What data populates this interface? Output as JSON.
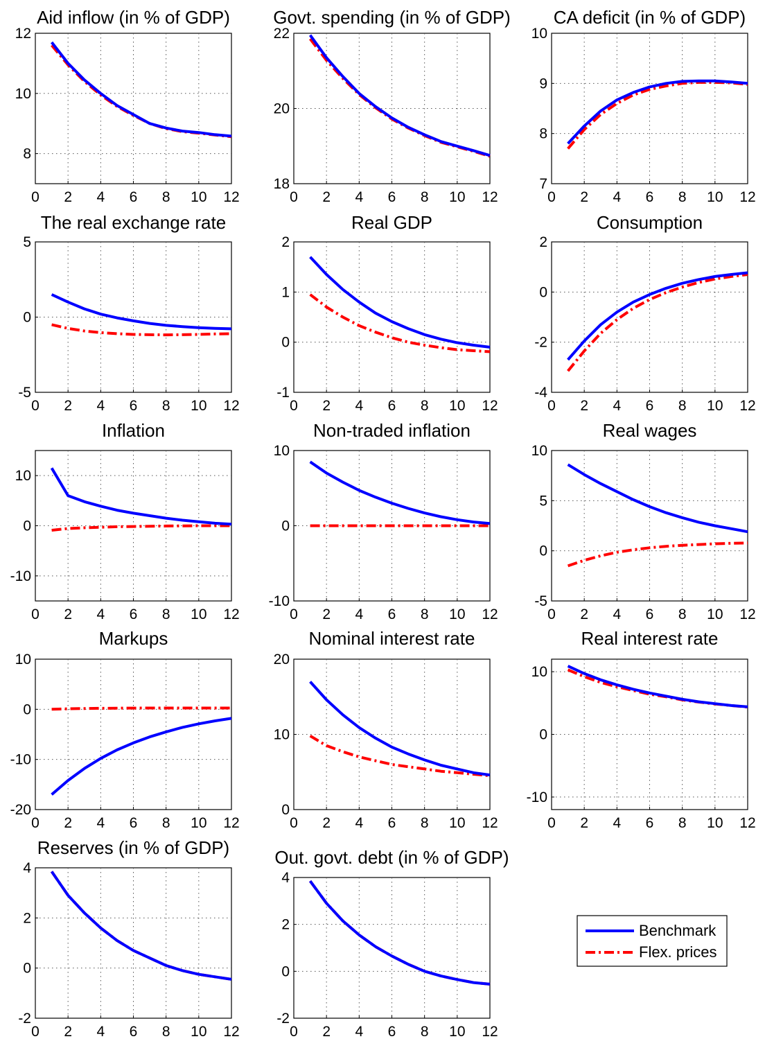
{
  "chart_data": [
    {
      "type": "line",
      "title": "Aid inflow (in % of GDP)",
      "xlim": [
        0,
        12
      ],
      "ylim": [
        7,
        12
      ],
      "xticks": [
        0,
        2,
        4,
        6,
        8,
        10,
        12
      ],
      "yticks": [
        8,
        10,
        12
      ],
      "grid": true,
      "series": [
        {
          "name": "Benchmark",
          "x": [
            1,
            2,
            3,
            4,
            5,
            6,
            7,
            8,
            9,
            10,
            11,
            12
          ],
          "y": [
            11.7,
            11.0,
            10.45,
            10.0,
            9.6,
            9.3,
            9.0,
            8.85,
            8.75,
            8.7,
            8.63,
            8.58
          ]
        },
        {
          "name": "Flex. prices",
          "x": [
            1,
            2,
            3,
            4,
            5,
            6,
            7,
            8,
            9,
            10,
            11,
            12
          ],
          "y": [
            11.6,
            10.95,
            10.4,
            9.95,
            9.57,
            9.27,
            9.0,
            8.83,
            8.73,
            8.68,
            8.62,
            8.56
          ]
        }
      ]
    },
    {
      "type": "line",
      "title": "Govt. spending (in % of GDP)",
      "xlim": [
        0,
        12
      ],
      "ylim": [
        18,
        22
      ],
      "xticks": [
        0,
        2,
        4,
        6,
        8,
        10,
        12
      ],
      "yticks": [
        18,
        20,
        22
      ],
      "grid": true,
      "series": [
        {
          "name": "Benchmark",
          "x": [
            1,
            2,
            3,
            4,
            5,
            6,
            7,
            8,
            9,
            10,
            11,
            12
          ],
          "y": [
            21.95,
            21.35,
            20.85,
            20.4,
            20.05,
            19.75,
            19.5,
            19.3,
            19.12,
            19.0,
            18.88,
            18.75
          ]
        },
        {
          "name": "Flex. prices",
          "x": [
            1,
            2,
            3,
            4,
            5,
            6,
            7,
            8,
            9,
            10,
            11,
            12
          ],
          "y": [
            21.85,
            21.28,
            20.8,
            20.37,
            20.02,
            19.72,
            19.48,
            19.28,
            19.1,
            18.98,
            18.86,
            18.73
          ]
        }
      ]
    },
    {
      "type": "line",
      "title": "CA deficit (in % of GDP)",
      "xlim": [
        0,
        12
      ],
      "ylim": [
        7,
        10
      ],
      "xticks": [
        0,
        2,
        4,
        6,
        8,
        10,
        12
      ],
      "yticks": [
        7,
        8,
        9,
        10
      ],
      "grid": true,
      "series": [
        {
          "name": "Benchmark",
          "x": [
            1,
            2,
            3,
            4,
            5,
            6,
            7,
            8,
            9,
            10,
            11,
            12
          ],
          "y": [
            7.8,
            8.15,
            8.45,
            8.67,
            8.82,
            8.93,
            9.0,
            9.04,
            9.05,
            9.05,
            9.03,
            9.0
          ]
        },
        {
          "name": "Flex. prices",
          "x": [
            1,
            2,
            3,
            4,
            5,
            6,
            7,
            8,
            9,
            10,
            11,
            12
          ],
          "y": [
            7.7,
            8.08,
            8.38,
            8.6,
            8.77,
            8.88,
            8.95,
            9.0,
            9.02,
            9.02,
            9.01,
            8.98
          ]
        }
      ]
    },
    {
      "type": "line",
      "title": "The real exchange rate",
      "xlim": [
        0,
        12
      ],
      "ylim": [
        -5,
        5
      ],
      "xticks": [
        0,
        2,
        4,
        6,
        8,
        10,
        12
      ],
      "yticks": [
        -5,
        0,
        5
      ],
      "grid": true,
      "series": [
        {
          "name": "Benchmark",
          "x": [
            1,
            2,
            3,
            4,
            5,
            6,
            7,
            8,
            9,
            10,
            11,
            12
          ],
          "y": [
            1.5,
            1.0,
            0.55,
            0.2,
            -0.05,
            -0.25,
            -0.42,
            -0.55,
            -0.63,
            -0.7,
            -0.75,
            -0.78
          ]
        },
        {
          "name": "Flex. prices",
          "x": [
            1,
            2,
            3,
            4,
            5,
            6,
            7,
            8,
            9,
            10,
            11,
            12
          ],
          "y": [
            -0.5,
            -0.75,
            -0.92,
            -1.03,
            -1.1,
            -1.15,
            -1.17,
            -1.18,
            -1.17,
            -1.15,
            -1.12,
            -1.1
          ]
        }
      ]
    },
    {
      "type": "line",
      "title": "Real GDP",
      "xlim": [
        0,
        12
      ],
      "ylim": [
        -1,
        2
      ],
      "xticks": [
        0,
        2,
        4,
        6,
        8,
        10,
        12
      ],
      "yticks": [
        -1,
        0,
        1,
        2
      ],
      "grid": true,
      "series": [
        {
          "name": "Benchmark",
          "x": [
            1,
            2,
            3,
            4,
            5,
            6,
            7,
            8,
            9,
            10,
            11,
            12
          ],
          "y": [
            1.7,
            1.35,
            1.05,
            0.8,
            0.58,
            0.41,
            0.27,
            0.15,
            0.06,
            -0.01,
            -0.06,
            -0.1
          ]
        },
        {
          "name": "Flex. prices",
          "x": [
            1,
            2,
            3,
            4,
            5,
            6,
            7,
            8,
            9,
            10,
            11,
            12
          ],
          "y": [
            0.95,
            0.7,
            0.5,
            0.33,
            0.2,
            0.09,
            0.0,
            -0.06,
            -0.11,
            -0.15,
            -0.17,
            -0.19
          ]
        }
      ]
    },
    {
      "type": "line",
      "title": "Consumption",
      "xlim": [
        0,
        12
      ],
      "ylim": [
        -4,
        2
      ],
      "xticks": [
        0,
        2,
        4,
        6,
        8,
        10,
        12
      ],
      "yticks": [
        -4,
        -2,
        0,
        2
      ],
      "grid": true,
      "series": [
        {
          "name": "Benchmark",
          "x": [
            1,
            2,
            3,
            4,
            5,
            6,
            7,
            8,
            9,
            10,
            11,
            12
          ],
          "y": [
            -2.7,
            -1.95,
            -1.3,
            -0.8,
            -0.4,
            -0.1,
            0.15,
            0.35,
            0.5,
            0.62,
            0.7,
            0.77
          ]
        },
        {
          "name": "Flex. prices",
          "x": [
            1,
            2,
            3,
            4,
            5,
            6,
            7,
            8,
            9,
            10,
            11,
            12
          ],
          "y": [
            -3.15,
            -2.35,
            -1.65,
            -1.1,
            -0.65,
            -0.3,
            -0.02,
            0.2,
            0.38,
            0.52,
            0.62,
            0.7
          ]
        }
      ]
    },
    {
      "type": "line",
      "title": "Inflation",
      "xlim": [
        0,
        12
      ],
      "ylim": [
        -15,
        15
      ],
      "xticks": [
        0,
        2,
        4,
        6,
        8,
        10,
        12
      ],
      "yticks": [
        -10,
        0,
        10
      ],
      "grid": true,
      "series": [
        {
          "name": "Benchmark",
          "x": [
            1,
            2,
            3,
            4,
            5,
            6,
            7,
            8,
            9,
            10,
            11,
            12
          ],
          "y": [
            11.5,
            6.0,
            4.8,
            3.9,
            3.1,
            2.5,
            2.0,
            1.5,
            1.1,
            0.8,
            0.5,
            0.3
          ]
        },
        {
          "name": "Flex. prices",
          "x": [
            1,
            2,
            3,
            4,
            5,
            6,
            7,
            8,
            9,
            10,
            11,
            12
          ],
          "y": [
            -0.9,
            -0.55,
            -0.4,
            -0.3,
            -0.2,
            -0.15,
            -0.1,
            -0.05,
            -0.03,
            0.0,
            0.0,
            0.0
          ]
        }
      ]
    },
    {
      "type": "line",
      "title": "Non-traded inflation",
      "xlim": [
        0,
        12
      ],
      "ylim": [
        -10,
        10
      ],
      "xticks": [
        0,
        2,
        4,
        6,
        8,
        10,
        12
      ],
      "yticks": [
        -10,
        0,
        10
      ],
      "grid": true,
      "series": [
        {
          "name": "Benchmark",
          "x": [
            1,
            2,
            3,
            4,
            5,
            6,
            7,
            8,
            9,
            10,
            11,
            12
          ],
          "y": [
            8.5,
            7.0,
            5.8,
            4.7,
            3.8,
            3.0,
            2.3,
            1.7,
            1.2,
            0.8,
            0.5,
            0.3
          ]
        },
        {
          "name": "Flex. prices",
          "x": [
            1,
            2,
            3,
            4,
            5,
            6,
            7,
            8,
            9,
            10,
            11,
            12
          ],
          "y": [
            0,
            0,
            0,
            0,
            0,
            0,
            0,
            0,
            0,
            0,
            0,
            0
          ]
        }
      ]
    },
    {
      "type": "line",
      "title": "Real wages",
      "xlim": [
        0,
        12
      ],
      "ylim": [
        -5,
        10
      ],
      "xticks": [
        0,
        2,
        4,
        6,
        8,
        10,
        12
      ],
      "yticks": [
        -5,
        0,
        5,
        10
      ],
      "grid": true,
      "series": [
        {
          "name": "Benchmark",
          "x": [
            1,
            2,
            3,
            4,
            5,
            6,
            7,
            8,
            9,
            10,
            11,
            12
          ],
          "y": [
            8.6,
            7.6,
            6.7,
            5.9,
            5.1,
            4.4,
            3.8,
            3.3,
            2.85,
            2.5,
            2.2,
            1.9
          ]
        },
        {
          "name": "Flex. prices",
          "x": [
            1,
            2,
            3,
            4,
            5,
            6,
            7,
            8,
            9,
            10,
            11,
            12
          ],
          "y": [
            -1.5,
            -0.95,
            -0.5,
            -0.15,
            0.1,
            0.3,
            0.45,
            0.55,
            0.63,
            0.7,
            0.75,
            0.78
          ]
        }
      ]
    },
    {
      "type": "line",
      "title": "Markups",
      "xlim": [
        0,
        12
      ],
      "ylim": [
        -20,
        10
      ],
      "xticks": [
        0,
        2,
        4,
        6,
        8,
        10,
        12
      ],
      "yticks": [
        -20,
        -10,
        0,
        10
      ],
      "grid": true,
      "series": [
        {
          "name": "Benchmark",
          "x": [
            1,
            2,
            3,
            4,
            5,
            6,
            7,
            8,
            9,
            10,
            11,
            12
          ],
          "y": [
            -17.0,
            -14.2,
            -11.8,
            -9.8,
            -8.1,
            -6.7,
            -5.5,
            -4.5,
            -3.6,
            -2.9,
            -2.3,
            -1.8
          ]
        },
        {
          "name": "Flex. prices",
          "x": [
            1,
            2,
            3,
            4,
            5,
            6,
            7,
            8,
            9,
            10,
            11,
            12
          ],
          "y": [
            0.0,
            0.1,
            0.15,
            0.2,
            0.22,
            0.24,
            0.25,
            0.25,
            0.25,
            0.25,
            0.25,
            0.25
          ]
        }
      ]
    },
    {
      "type": "line",
      "title": "Nominal interest rate",
      "xlim": [
        0,
        12
      ],
      "ylim": [
        0,
        20
      ],
      "xticks": [
        0,
        2,
        4,
        6,
        8,
        10,
        12
      ],
      "yticks": [
        0,
        10,
        20
      ],
      "grid": true,
      "series": [
        {
          "name": "Benchmark",
          "x": [
            1,
            2,
            3,
            4,
            5,
            6,
            7,
            8,
            9,
            10,
            11,
            12
          ],
          "y": [
            17.0,
            14.6,
            12.6,
            10.9,
            9.5,
            8.3,
            7.4,
            6.6,
            5.9,
            5.4,
            4.9,
            4.6
          ]
        },
        {
          "name": "Flex. prices",
          "x": [
            1,
            2,
            3,
            4,
            5,
            6,
            7,
            8,
            9,
            10,
            11,
            12
          ],
          "y": [
            9.8,
            8.5,
            7.7,
            7.0,
            6.5,
            6.0,
            5.7,
            5.4,
            5.1,
            4.9,
            4.7,
            4.5
          ]
        }
      ]
    },
    {
      "type": "line",
      "title": "Real interest rate",
      "xlim": [
        0,
        12
      ],
      "ylim": [
        -12,
        12
      ],
      "xticks": [
        0,
        2,
        4,
        6,
        8,
        10,
        12
      ],
      "yticks": [
        -10,
        0,
        10
      ],
      "grid": true,
      "series": [
        {
          "name": "Benchmark",
          "x": [
            1,
            2,
            3,
            4,
            5,
            6,
            7,
            8,
            9,
            10,
            11,
            12
          ],
          "y": [
            10.9,
            9.7,
            8.7,
            7.9,
            7.2,
            6.6,
            6.1,
            5.6,
            5.2,
            4.9,
            4.6,
            4.4
          ]
        },
        {
          "name": "Flex. prices",
          "x": [
            1,
            2,
            3,
            4,
            5,
            6,
            7,
            8,
            9,
            10,
            11,
            12
          ],
          "y": [
            10.3,
            9.2,
            8.3,
            7.6,
            7.0,
            6.4,
            6.0,
            5.5,
            5.15,
            4.85,
            4.6,
            4.35
          ]
        }
      ]
    },
    {
      "type": "line",
      "title": "Reserves (in % of GDP)",
      "xlim": [
        0,
        12
      ],
      "ylim": [
        -2,
        4
      ],
      "xticks": [
        0,
        2,
        4,
        6,
        8,
        10,
        12
      ],
      "yticks": [
        -2,
        0,
        2,
        4
      ],
      "grid": true,
      "series": [
        {
          "name": "Benchmark",
          "x": [
            1,
            2,
            3,
            4,
            5,
            6,
            7,
            8,
            9,
            10,
            11,
            12
          ],
          "y": [
            3.85,
            2.9,
            2.2,
            1.6,
            1.1,
            0.7,
            0.4,
            0.1,
            -0.1,
            -0.25,
            -0.35,
            -0.45
          ]
        },
        {
          "name": "Flex. prices",
          "x": [
            1,
            2,
            3,
            4,
            5,
            6,
            7,
            8,
            9,
            10,
            11,
            12
          ],
          "y": [
            3.85,
            2.9,
            2.2,
            1.6,
            1.1,
            0.7,
            0.4,
            0.1,
            -0.1,
            -0.25,
            -0.35,
            -0.45
          ]
        }
      ]
    },
    {
      "type": "line",
      "title": "Out. govt. debt (in % of GDP)",
      "xlim": [
        0,
        12
      ],
      "ylim": [
        -2,
        4
      ],
      "xticks": [
        0,
        2,
        4,
        6,
        8,
        10,
        12
      ],
      "yticks": [
        -2,
        0,
        2,
        4
      ],
      "grid": true,
      "series": [
        {
          "name": "Benchmark",
          "x": [
            1,
            2,
            3,
            4,
            5,
            6,
            7,
            8,
            9,
            10,
            11,
            12
          ],
          "y": [
            3.85,
            2.9,
            2.15,
            1.55,
            1.05,
            0.65,
            0.3,
            0.0,
            -0.2,
            -0.35,
            -0.48,
            -0.55
          ]
        },
        {
          "name": "Flex. prices",
          "x": [
            1,
            2,
            3,
            4,
            5,
            6,
            7,
            8,
            9,
            10,
            11,
            12
          ],
          "y": [
            3.85,
            2.9,
            2.15,
            1.55,
            1.05,
            0.65,
            0.3,
            0.0,
            -0.2,
            -0.35,
            -0.48,
            -0.55
          ]
        }
      ]
    }
  ],
  "legend": {
    "placement": "bottom-right",
    "entries": [
      {
        "label": "Benchmark",
        "color": "#0000ff",
        "style": "solid"
      },
      {
        "label": "Flex. prices",
        "color": "#ff0000",
        "style": "dash-dot"
      }
    ]
  }
}
